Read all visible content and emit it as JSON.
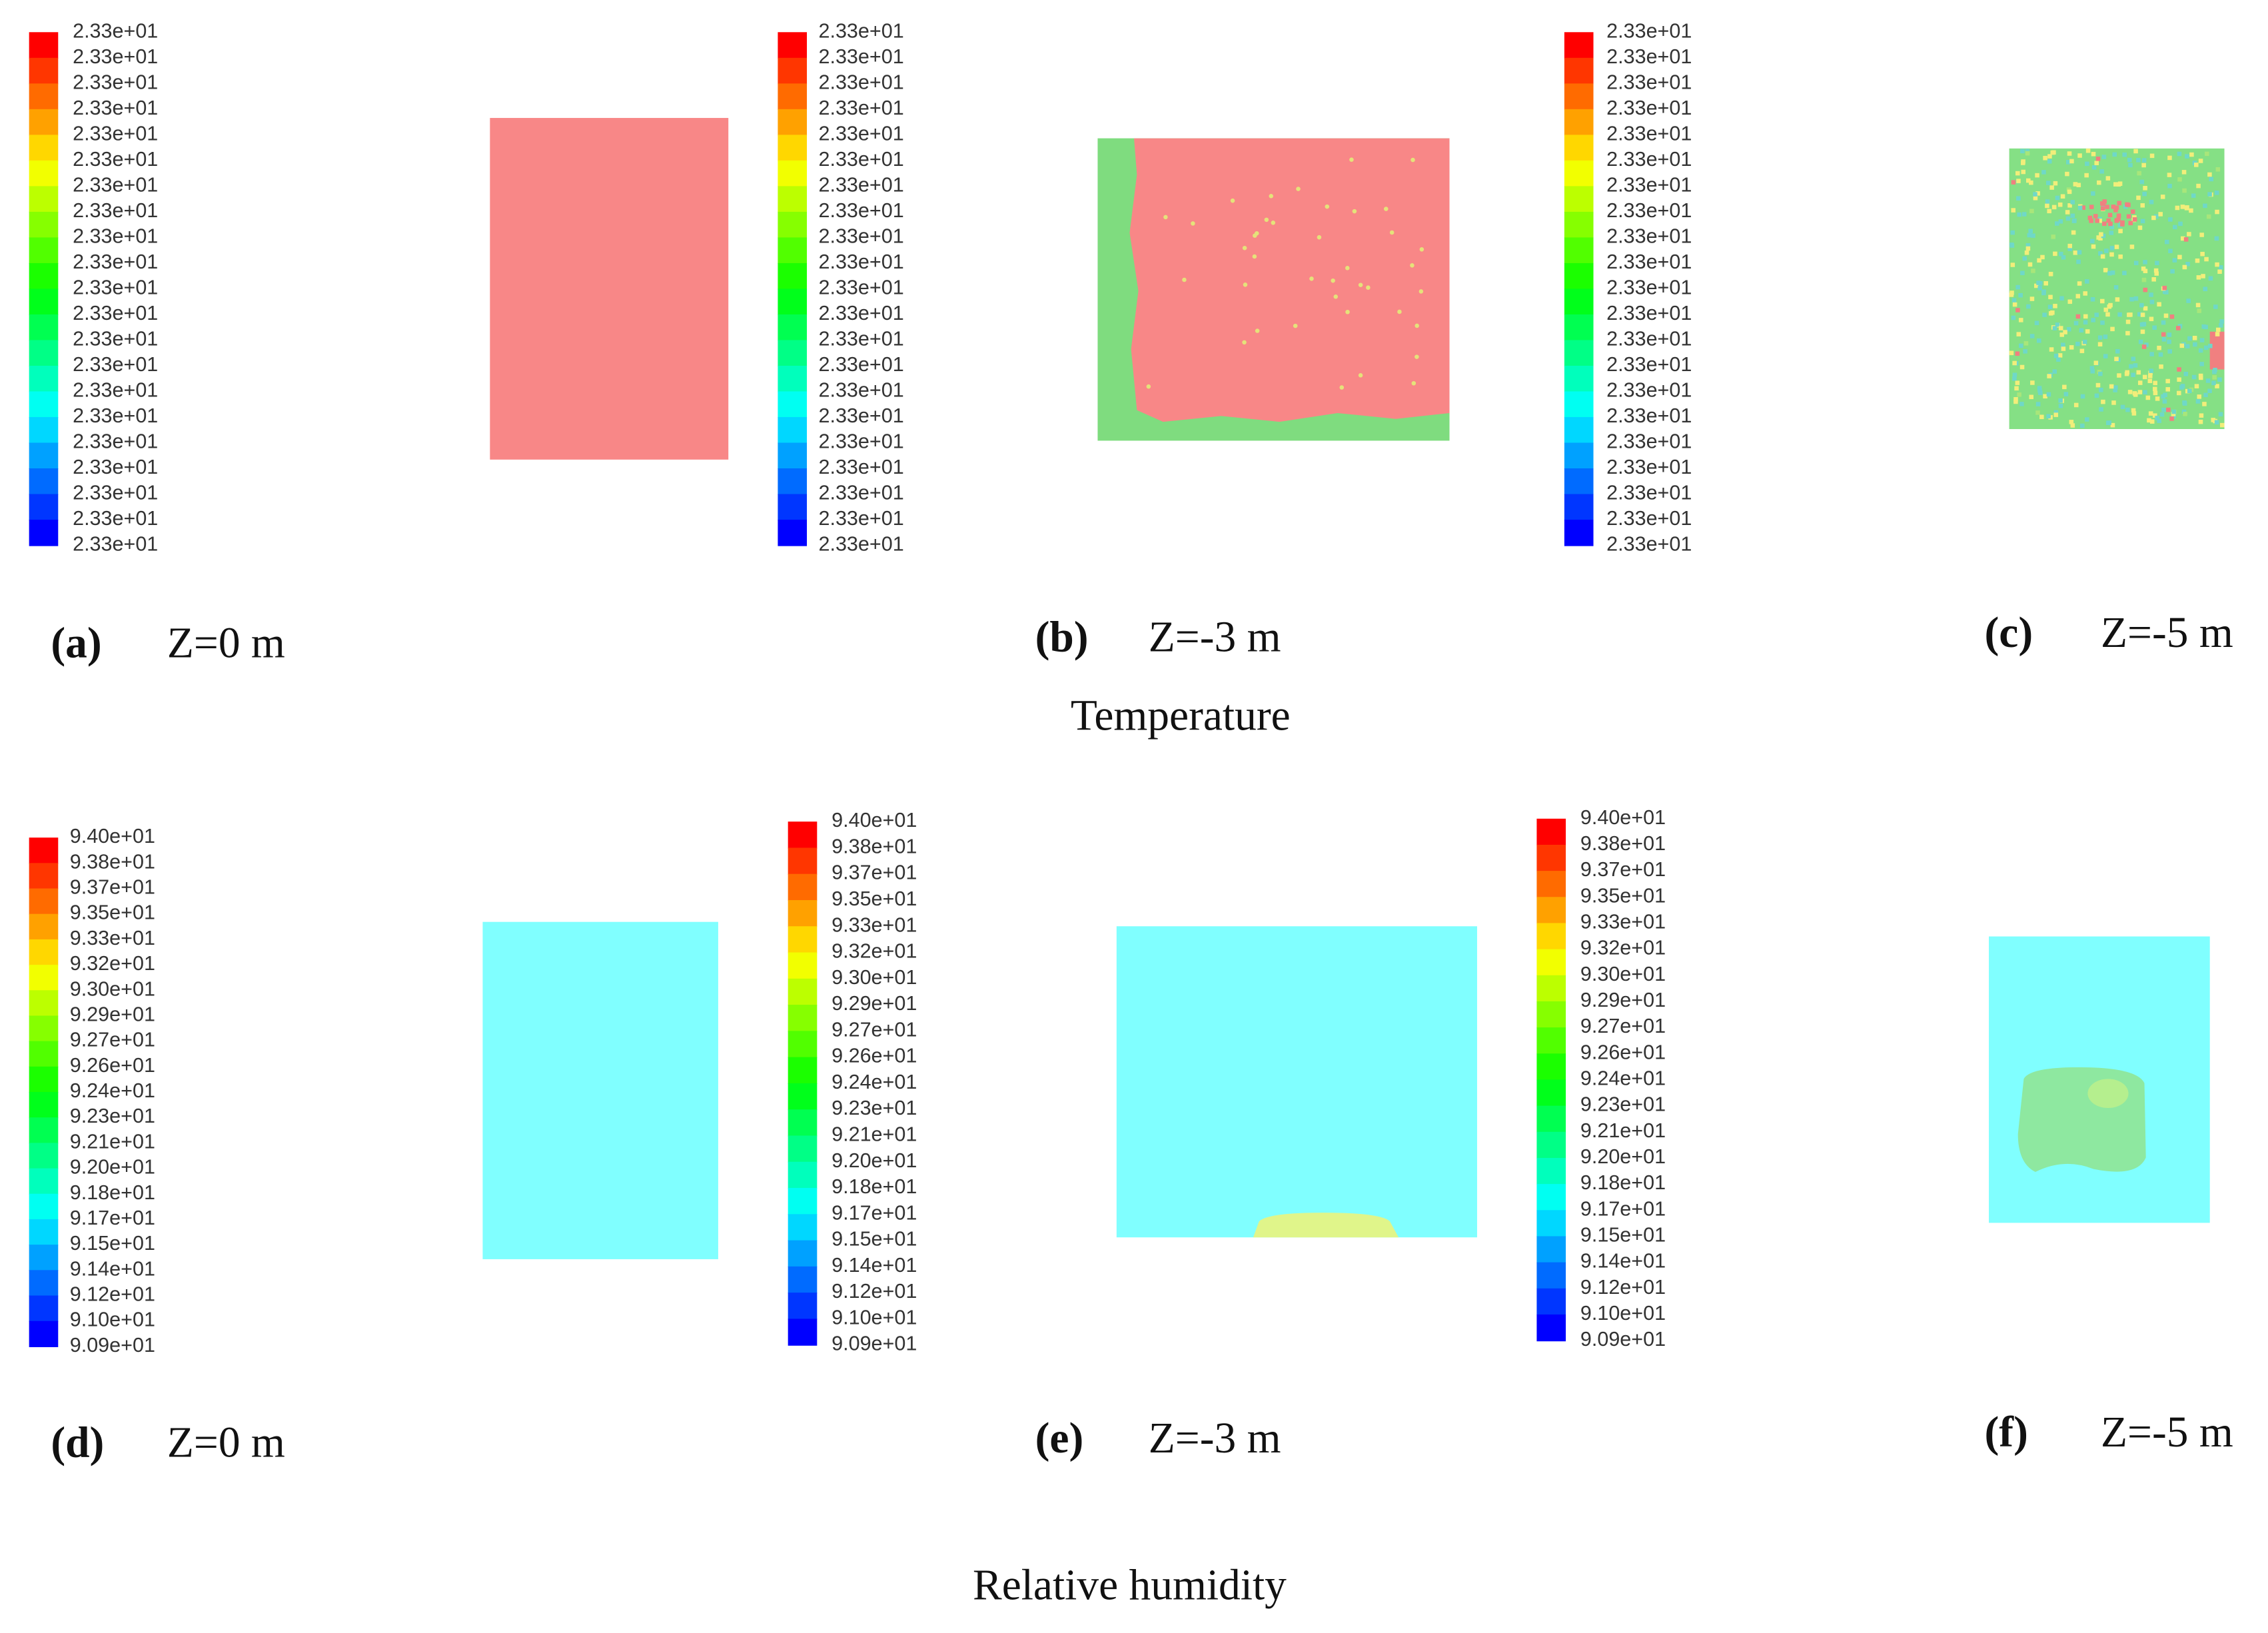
{
  "temperature": {
    "title": "Temperature",
    "panels": [
      {
        "label": "(a)",
        "caption": "Z=0 m",
        "legend": [
          "2.33e+01",
          "2.33e+01",
          "2.33e+01",
          "2.33e+01",
          "2.33e+01",
          "2.33e+01",
          "2.33e+01",
          "2.33e+01",
          "2.33e+01",
          "2.33e+01",
          "2.33e+01",
          "2.33e+01",
          "2.33e+01",
          "2.33e+01",
          "2.33e+01",
          "2.33e+01",
          "2.33e+01",
          "2.33e+01",
          "2.33e+01",
          "2.33e+01",
          "2.33e+01"
        ]
      },
      {
        "label": "(b)",
        "caption": "Z=-3 m",
        "legend": [
          "2.33e+01",
          "2.33e+01",
          "2.33e+01",
          "2.33e+01",
          "2.33e+01",
          "2.33e+01",
          "2.33e+01",
          "2.33e+01",
          "2.33e+01",
          "2.33e+01",
          "2.33e+01",
          "2.33e+01",
          "2.33e+01",
          "2.33e+01",
          "2.33e+01",
          "2.33e+01",
          "2.33e+01",
          "2.33e+01",
          "2.33e+01",
          "2.33e+01",
          "2.33e+01"
        ]
      },
      {
        "label": "(c)",
        "caption": "Z=-5 m",
        "legend": [
          "2.33e+01",
          "2.33e+01",
          "2.33e+01",
          "2.33e+01",
          "2.33e+01",
          "2.33e+01",
          "2.33e+01",
          "2.33e+01",
          "2.33e+01",
          "2.33e+01",
          "2.33e+01",
          "2.33e+01",
          "2.33e+01",
          "2.33e+01",
          "2.33e+01",
          "2.33e+01",
          "2.33e+01",
          "2.33e+01",
          "2.33e+01",
          "2.33e+01",
          "2.33e+01"
        ]
      }
    ]
  },
  "relative_humidity": {
    "title": "Relative humidity",
    "panels": [
      {
        "label": "(d)",
        "caption": "Z=0 m",
        "legend": [
          "9.40e+01",
          "9.38e+01",
          "9.37e+01",
          "9.35e+01",
          "9.33e+01",
          "9.32e+01",
          "9.30e+01",
          "9.29e+01",
          "9.27e+01",
          "9.26e+01",
          "9.24e+01",
          "9.23e+01",
          "9.21e+01",
          "9.20e+01",
          "9.18e+01",
          "9.17e+01",
          "9.15e+01",
          "9.14e+01",
          "9.12e+01",
          "9.10e+01",
          "9.09e+01"
        ]
      },
      {
        "label": "(e)",
        "caption": "Z=-3 m",
        "legend": [
          "9.40e+01",
          "9.38e+01",
          "9.37e+01",
          "9.35e+01",
          "9.33e+01",
          "9.32e+01",
          "9.30e+01",
          "9.29e+01",
          "9.27e+01",
          "9.26e+01",
          "9.24e+01",
          "9.23e+01",
          "9.21e+01",
          "9.20e+01",
          "9.18e+01",
          "9.17e+01",
          "9.15e+01",
          "9.14e+01",
          "9.12e+01",
          "9.10e+01",
          "9.09e+01"
        ]
      },
      {
        "label": "(f)",
        "caption": "Z=-5 m",
        "legend": [
          "9.40e+01",
          "9.38e+01",
          "9.37e+01",
          "9.35e+01",
          "9.33e+01",
          "9.32e+01",
          "9.30e+01",
          "9.29e+01",
          "9.27e+01",
          "9.26e+01",
          "9.24e+01",
          "9.23e+01",
          "9.21e+01",
          "9.20e+01",
          "9.18e+01",
          "9.17e+01",
          "9.15e+01",
          "9.14e+01",
          "9.12e+01",
          "9.10e+01",
          "9.09e+01"
        ]
      }
    ]
  }
}
